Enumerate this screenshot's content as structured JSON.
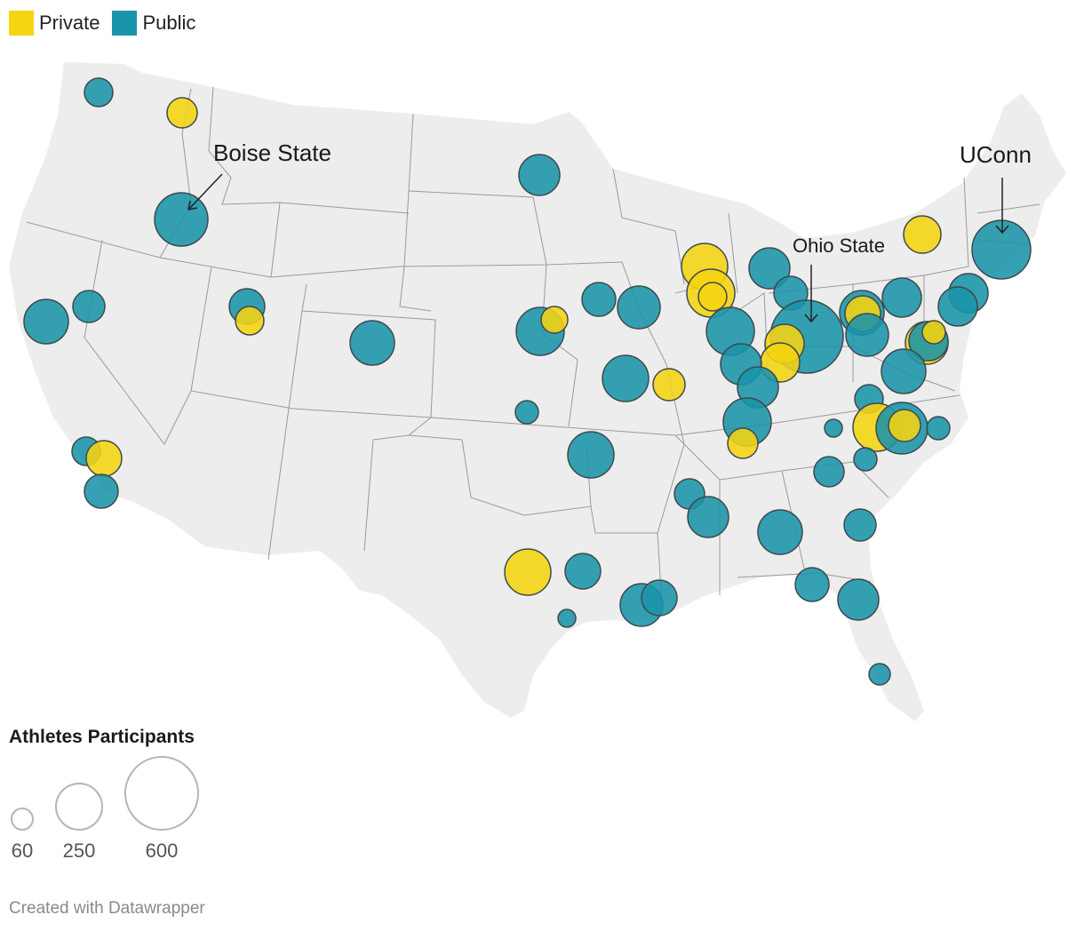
{
  "legend": {
    "items": [
      {
        "label": "Private",
        "color": "#f5d410"
      },
      {
        "label": "Public",
        "color": "#1a94a8"
      }
    ]
  },
  "annotations": {
    "boise": "Boise State",
    "uconn": "UConn",
    "ohio": "Ohio State"
  },
  "size_legend": {
    "title": "Athletes Participants",
    "values": [
      "60",
      "250",
      "600"
    ]
  },
  "credit": "Created with Datawrapper",
  "colors": {
    "private": "#f5d410",
    "public": "#1a94a8",
    "land": "#ededed",
    "border": "#9a9a9a"
  }
}
